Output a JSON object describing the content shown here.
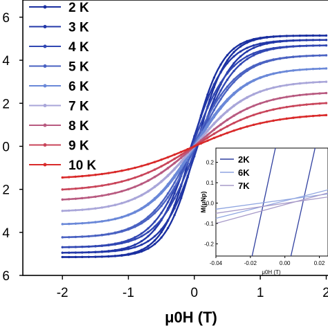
{
  "chart_data": [
    {
      "type": "line",
      "title": "",
      "xlabel": "μ0H (T)",
      "ylabel": "",
      "xlim": [
        -2.6,
        2.1
      ],
      "ylim": [
        -6,
        6.8
      ],
      "x_ticks": [
        "-2",
        "-1",
        "0",
        "1",
        "2"
      ],
      "y_ticks": [
        "6",
        "4",
        "2",
        "0",
        "2",
        "4",
        "6"
      ],
      "legend_position": "top-left",
      "series": [
        {
          "name": "2 K",
          "color": "#1a2fa0",
          "msat": 5.15,
          "coercive": 0.03,
          "steepness": 2.2
        },
        {
          "name": "3 K",
          "color": "#2338a8",
          "msat": 4.95,
          "coercive": 0.05,
          "steepness": 1.9
        },
        {
          "name": "4 K",
          "color": "#3147b3",
          "msat": 4.7,
          "coercive": 0.035,
          "steepness": 1.7
        },
        {
          "name": "5 K",
          "color": "#4a62c2",
          "msat": 4.25,
          "coercive": 0.02,
          "steepness": 1.5
        },
        {
          "name": "6 K",
          "color": "#6a88d8",
          "msat": 3.65,
          "coercive": 0.012,
          "steepness": 1.35
        },
        {
          "name": "7 K",
          "color": "#a9a6d9",
          "msat": 3.05,
          "coercive": 0.007,
          "steepness": 1.2
        },
        {
          "name": "8 K",
          "color": "#b85a80",
          "msat": 2.55,
          "coercive": 0.004,
          "steepness": 1.05
        },
        {
          "name": "9 K",
          "color": "#c9455a",
          "msat": 2.1,
          "coercive": 0.002,
          "steepness": 0.95
        },
        {
          "name": "10 K",
          "color": "#d92a2a",
          "msat": 1.55,
          "coercive": 0.001,
          "steepness": 0.85
        }
      ]
    },
    {
      "type": "line",
      "title": "",
      "xlabel": "μ0H (T)",
      "ylabel": "M(μNp)",
      "xlim": [
        -0.04,
        0.025
      ],
      "ylim": [
        -0.26,
        0.27
      ],
      "x_ticks": [
        "-0.04",
        "-0.02",
        "0.00",
        "0.02"
      ],
      "y_ticks": [
        "0.2",
        "0.1",
        "0.0",
        "-0.1",
        "-0.2"
      ],
      "legend_position": "top-left",
      "series": [
        {
          "name": "2K",
          "color": "#2f3f9f"
        },
        {
          "name": "6K",
          "color": "#8ea4e0"
        },
        {
          "name": "7K",
          "color": "#a79ac8"
        }
      ],
      "lines": [
        {
          "series": "2K",
          "points": [
            [
              -0.019,
              -0.26
            ],
            [
              -0.0055,
              0.27
            ]
          ]
        },
        {
          "series": "2K",
          "points": [
            [
              0.0035,
              -0.26
            ],
            [
              0.0175,
              0.27
            ]
          ]
        },
        {
          "series": "6K",
          "points": [
            [
              -0.04,
              -0.075
            ],
            [
              0.025,
              0.065
            ]
          ]
        },
        {
          "series": "6K",
          "points": [
            [
              -0.04,
              -0.03
            ],
            [
              0.025,
              0.045
            ]
          ]
        },
        {
          "series": "7K",
          "points": [
            [
              -0.04,
              -0.1
            ],
            [
              0.025,
              0.05
            ]
          ]
        },
        {
          "series": "7K",
          "points": [
            [
              -0.04,
              -0.05
            ],
            [
              0.025,
              0.03
            ]
          ]
        }
      ]
    }
  ]
}
